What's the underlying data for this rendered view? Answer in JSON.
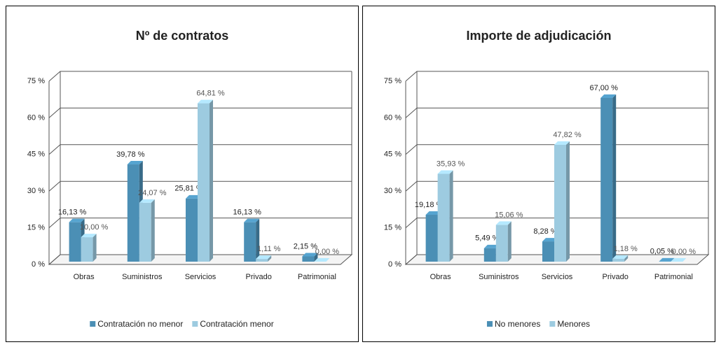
{
  "chart_data": [
    {
      "type": "bar",
      "title": "Nº de contratos",
      "categories": [
        "Obras",
        "Suministros",
        "Servicios",
        "Privado",
        "Patrimonial"
      ],
      "series": [
        {
          "name": "Contratación no menor",
          "color": "#4b8fb5",
          "values": [
            16.13,
            39.78,
            25.81,
            16.13,
            2.15
          ],
          "value_labels": [
            "16,13 %",
            "39,78 %",
            "25,81 %",
            "16,13 %",
            "2,15 %"
          ]
        },
        {
          "name": "Contratación menor",
          "color": "#9dcbe0",
          "values": [
            10.0,
            24.07,
            64.81,
            1.11,
            0.0
          ],
          "value_labels": [
            "10,00 %",
            "24,07 %",
            "64,81 %",
            "1,11 %",
            "0,00 %"
          ]
        }
      ],
      "ylim": [
        0,
        75
      ],
      "yticks": [
        {
          "value": 0,
          "label": "0 %"
        },
        {
          "value": 15,
          "label": "15 %"
        },
        {
          "value": 30,
          "label": "30 %"
        },
        {
          "value": 45,
          "label": "45 %"
        },
        {
          "value": 60,
          "label": "60 %"
        },
        {
          "value": 75,
          "label": "75 %"
        }
      ],
      "grid": true,
      "legend": "bottom"
    },
    {
      "type": "bar",
      "title": "Importe de adjudicación",
      "categories": [
        "Obras",
        "Suministros",
        "Servicios",
        "Privado",
        "Patrimonial"
      ],
      "series": [
        {
          "name": "No menores",
          "color": "#4b8fb5",
          "values": [
            19.18,
            5.49,
            8.28,
            67.0,
            0.05
          ],
          "value_labels": [
            "19,18 %",
            "5,49 %",
            "8,28 %",
            "67,00 %",
            "0,05 %"
          ]
        },
        {
          "name": "Menores",
          "color": "#9dcbe0",
          "values": [
            35.93,
            15.06,
            47.82,
            1.18,
            0.0
          ],
          "value_labels": [
            "35,93 %",
            "15,06 %",
            "47,82 %",
            "1,18 %",
            "0,00 %"
          ]
        }
      ],
      "ylim": [
        0,
        75
      ],
      "yticks": [
        {
          "value": 0,
          "label": "0 %"
        },
        {
          "value": 15,
          "label": "15 %"
        },
        {
          "value": 30,
          "label": "30 %"
        },
        {
          "value": 45,
          "label": "45 %"
        },
        {
          "value": 60,
          "label": "60 %"
        },
        {
          "value": 75,
          "label": "75 %"
        }
      ],
      "grid": true,
      "legend": "bottom"
    }
  ]
}
